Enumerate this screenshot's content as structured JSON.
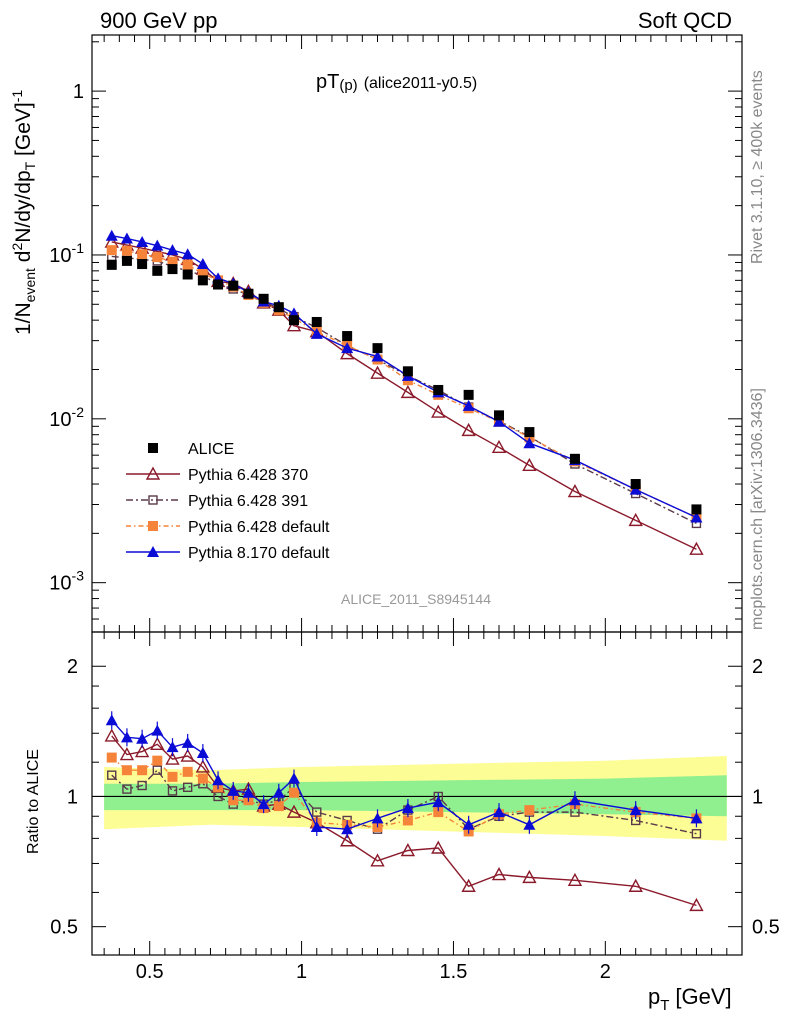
{
  "header": {
    "left": "900 GeV pp",
    "right": "Soft QCD"
  },
  "side_labels": {
    "rivet": "Rivet 3.1.10, ≥ 400k events",
    "mcplots": "mcplots.cern.ch [arXiv:1306.3436]"
  },
  "chart_data": {
    "type": "line",
    "title_main": "pT",
    "title_sub": "(p)",
    "title_suffix": "(alice2011-y0.5)",
    "watermark": "ALICE_2011_S8945144",
    "xlabel_main": "p",
    "xlabel_sub": "T",
    "xlabel_unit": "[GeV]",
    "ylabel_top": "1/N_event d²N/dy/dp_T [GeV]⁻¹",
    "ylabel_bottom": "Ratio to ALICE",
    "y_scale": "log",
    "xlim": [
      0.31,
      2.45
    ],
    "ylim_top": [
      0.0005,
      2.2
    ],
    "ylim_bottom": [
      0.43,
      2.4
    ],
    "ratio_scale": "log",
    "x_ticks": [
      "0.5",
      "1",
      "1.5",
      "2"
    ],
    "x_tick_values": [
      0.5,
      1,
      1.5,
      2
    ],
    "y_ticks_top": [
      "1",
      "10⁻¹",
      "10⁻²",
      "10⁻³"
    ],
    "y_ticks_bottom": [
      "2",
      "1",
      "0.5"
    ],
    "legend_position": "bottom-left",
    "x": [
      0.375,
      0.425,
      0.475,
      0.525,
      0.575,
      0.625,
      0.675,
      0.725,
      0.775,
      0.825,
      0.875,
      0.925,
      0.975,
      1.05,
      1.15,
      1.25,
      1.35,
      1.45,
      1.55,
      1.65,
      1.75,
      1.9,
      2.1,
      2.3
    ],
    "series": [
      {
        "name": "ALICE",
        "color": "#000000",
        "marker": "filled-square",
        "values": [
          0.087,
          0.092,
          0.088,
          0.08,
          0.082,
          0.076,
          0.07,
          0.066,
          0.065,
          0.058,
          0.054,
          0.048,
          0.04,
          0.039,
          0.032,
          0.027,
          0.0195,
          0.015,
          0.014,
          0.0105,
          0.0083,
          0.0057,
          0.004,
          0.0028
        ]
      },
      {
        "name": "Pythia 6.428 370",
        "color": "#8b1a2b",
        "marker": "open-triangle",
        "values": [
          0.12,
          0.115,
          0.11,
          0.105,
          0.1,
          0.094,
          0.082,
          0.069,
          0.067,
          0.06,
          0.051,
          0.046,
          0.037,
          0.034,
          0.025,
          0.019,
          0.0145,
          0.011,
          0.0085,
          0.0067,
          0.0052,
          0.0036,
          0.0024,
          0.0016
        ]
      },
      {
        "name": "Pythia 6.428 391",
        "color": "#5a3a4a",
        "marker": "open-square",
        "values": [
          0.098,
          0.096,
          0.094,
          0.092,
          0.085,
          0.08,
          0.075,
          0.066,
          0.062,
          0.057,
          0.052,
          0.047,
          0.042,
          0.036,
          0.028,
          0.023,
          0.0183,
          0.015,
          0.0118,
          0.0097,
          0.0078,
          0.0053,
          0.0035,
          0.0023
        ]
      },
      {
        "name": "Pythia 6.428 default",
        "color": "#f5843a",
        "marker": "filled-square",
        "values": [
          0.107,
          0.106,
          0.101,
          0.097,
          0.091,
          0.087,
          0.077,
          0.07,
          0.064,
          0.057,
          0.051,
          0.046,
          0.041,
          0.034,
          0.028,
          0.023,
          0.0172,
          0.014,
          0.0116,
          0.0096,
          0.0077,
          0.0055,
          0.0037,
          0.0025
        ]
      },
      {
        "name": "Pythia 8.170 default",
        "color": "#0b0bd6",
        "marker": "filled-triangle",
        "values": [
          0.131,
          0.126,
          0.12,
          0.114,
          0.107,
          0.101,
          0.088,
          0.072,
          0.067,
          0.059,
          0.052,
          0.049,
          0.044,
          0.033,
          0.027,
          0.024,
          0.0183,
          0.0145,
          0.012,
          0.0096,
          0.0071,
          0.0056,
          0.0037,
          0.0025
        ]
      }
    ],
    "ratios": [
      {
        "name": "Pythia 6.428 370",
        "values": [
          1.38,
          1.25,
          1.27,
          1.32,
          1.22,
          1.24,
          1.17,
          1.05,
          1.03,
          1.04,
          0.95,
          0.96,
          0.92,
          0.87,
          0.79,
          0.71,
          0.75,
          0.76,
          0.62,
          0.66,
          0.65,
          0.64,
          0.62,
          0.56
        ]
      },
      {
        "name": "Pythia 6.428 391",
        "values": [
          1.12,
          1.04,
          1.06,
          1.15,
          1.03,
          1.05,
          1.07,
          1.0,
          0.96,
          0.98,
          0.96,
          0.98,
          1.05,
          0.92,
          0.88,
          0.84,
          0.93,
          1.0,
          0.84,
          0.9,
          0.92,
          0.92,
          0.88,
          0.82
        ]
      },
      {
        "name": "Pythia 6.428 default",
        "values": [
          1.23,
          1.15,
          1.15,
          1.21,
          1.11,
          1.14,
          1.1,
          1.05,
          0.98,
          0.98,
          0.94,
          0.95,
          1.02,
          0.87,
          0.86,
          0.85,
          0.88,
          0.92,
          0.83,
          0.91,
          0.93,
          0.96,
          0.92,
          0.89
        ]
      },
      {
        "name": "Pythia 8.170 default",
        "values": [
          1.5,
          1.37,
          1.36,
          1.42,
          1.3,
          1.33,
          1.26,
          1.09,
          1.03,
          1.02,
          0.96,
          1.02,
          1.1,
          0.85,
          0.84,
          0.89,
          0.94,
          0.97,
          0.86,
          0.92,
          0.86,
          0.98,
          0.93,
          0.89
        ]
      }
    ],
    "ratio_band_green": [
      {
        "x": 0.35,
        "lo": 0.93,
        "hi": 1.07
      },
      {
        "x": 0.7,
        "lo": 0.93,
        "hi": 1.07
      },
      {
        "x": 1.0,
        "lo": 0.93,
        "hi": 1.08
      },
      {
        "x": 1.5,
        "lo": 0.92,
        "hi": 1.09
      },
      {
        "x": 2.0,
        "lo": 0.91,
        "hi": 1.1
      },
      {
        "x": 2.4,
        "lo": 0.9,
        "hi": 1.12
      }
    ],
    "ratio_band_yellow": [
      {
        "x": 0.35,
        "lo": 0.84,
        "hi": 1.17
      },
      {
        "x": 0.7,
        "lo": 0.86,
        "hi": 1.15
      },
      {
        "x": 1.0,
        "lo": 0.85,
        "hi": 1.17
      },
      {
        "x": 1.5,
        "lo": 0.83,
        "hi": 1.19
      },
      {
        "x": 2.0,
        "lo": 0.81,
        "hi": 1.21
      },
      {
        "x": 2.4,
        "lo": 0.79,
        "hi": 1.24
      }
    ],
    "colors": {
      "band_green": "#90f090",
      "band_yellow": "#fdfd96",
      "rivet_text": "#888888"
    }
  }
}
